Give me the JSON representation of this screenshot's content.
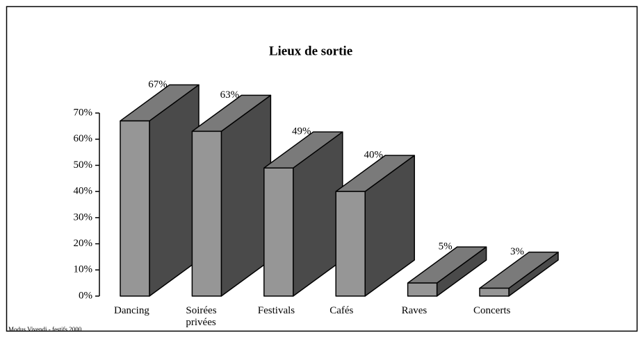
{
  "chart_data": {
    "type": "bar3d",
    "title": "Lieux de sortie",
    "categories": [
      "Dancing",
      "Soirées\nprivées",
      "Festivals",
      "Cafés",
      "Raves",
      "Concerts"
    ],
    "values": [
      67,
      63,
      49,
      40,
      5,
      3
    ],
    "value_labels": [
      "67%",
      "63%",
      "49%",
      "40%",
      "5%",
      "3%"
    ],
    "colors": {
      "front": "#969696",
      "top": "#7a7a7a",
      "side": "#4a4a4a"
    },
    "ylim": [
      0,
      70
    ],
    "yticks": [
      {
        "value": 0,
        "label": "0%"
      },
      {
        "value": 10,
        "label": "10%"
      },
      {
        "value": 20,
        "label": "20%"
      },
      {
        "value": 30,
        "label": "30%"
      },
      {
        "value": 40,
        "label": "40%"
      },
      {
        "value": 50,
        "label": "50%"
      },
      {
        "value": 60,
        "label": "60%"
      },
      {
        "value": 70,
        "label": "70%"
      }
    ],
    "footnote": "Modus Vivendi - festifs 2000"
  }
}
